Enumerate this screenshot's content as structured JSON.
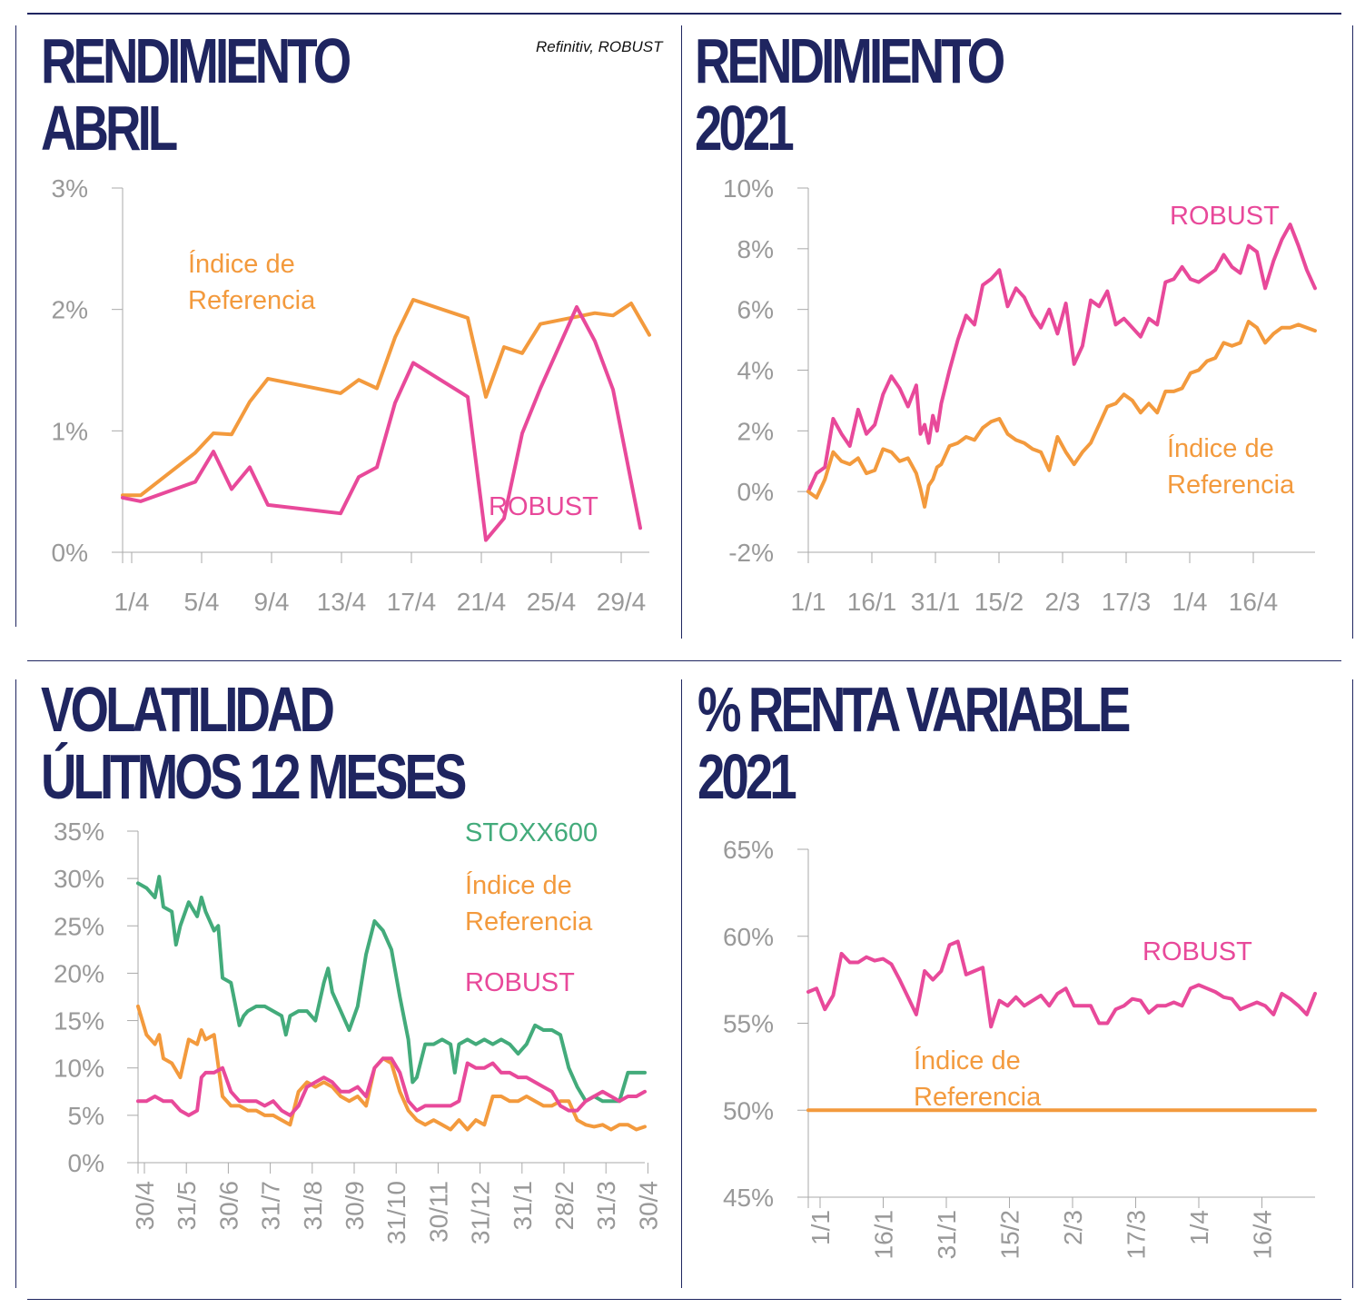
{
  "source": "Refinitiv, ROBUST",
  "colors": {
    "robust": "#e8499a",
    "index": "#f39a3d",
    "stoxx": "#43ab7b",
    "axis": "#aaaaaa",
    "title": "#1f2560",
    "tick": "#999999"
  },
  "panels": [
    {
      "title_line1": "RENDIMIENTO",
      "title_line2": "ABRIL"
    },
    {
      "title_line1": "RENDIMIENTO",
      "title_line2": "2021"
    },
    {
      "title_line1": "VOLATILIDAD",
      "title_line2": "ÚLITMOS 12 MESES"
    },
    {
      "title_line1": "% RENTA VARIABLE",
      "title_line2": "2021"
    }
  ],
  "chart_data": [
    {
      "type": "line",
      "x_ticks": [
        "1/4",
        "5/4",
        "9/4",
        "13/4",
        "17/4",
        "21/4",
        "25/4",
        "29/4"
      ],
      "y_ticks": [
        "0%",
        "1%",
        "2%",
        "3%"
      ],
      "ylim": [
        0,
        3
      ],
      "xlim": [
        1,
        30
      ],
      "series": [
        {
          "name": "Índice de Referencia",
          "label_line1": "Índice de",
          "label_line2": "Referencia",
          "color": "#f39a3d",
          "x": [
            1,
            2,
            5,
            6,
            7,
            8,
            9,
            13,
            14,
            15,
            16,
            17,
            20,
            21,
            22,
            23,
            24,
            27,
            28,
            29,
            30
          ],
          "y": [
            0.47,
            0.47,
            0.82,
            0.98,
            0.97,
            1.24,
            1.43,
            1.31,
            1.42,
            1.35,
            1.77,
            2.08,
            1.93,
            1.28,
            1.69,
            1.64,
            1.88,
            1.97,
            1.95,
            2.05,
            1.79
          ]
        },
        {
          "name": "ROBUST",
          "label_line1": "ROBUST",
          "color": "#e8499a",
          "x": [
            1,
            2,
            5,
            6,
            7,
            8,
            9,
            13,
            14,
            15,
            16,
            17,
            20,
            21,
            22,
            23,
            24,
            26,
            27,
            28,
            29.5
          ],
          "y": [
            0.45,
            0.42,
            0.58,
            0.83,
            0.52,
            0.7,
            0.39,
            0.32,
            0.62,
            0.7,
            1.23,
            1.56,
            1.28,
            0.1,
            0.28,
            0.98,
            1.35,
            2.02,
            1.74,
            1.34,
            0.2
          ]
        }
      ]
    },
    {
      "type": "line",
      "x_ticks": [
        "1/1",
        "16/1",
        "31/1",
        "15/2",
        "2/3",
        "17/3",
        "1/4",
        "16/4"
      ],
      "y_ticks": [
        "-2%",
        "0%",
        "2%",
        "4%",
        "6%",
        "8%",
        "10%"
      ],
      "ylim": [
        -2,
        10
      ],
      "series": [
        {
          "name": "ROBUST",
          "label_line1": "ROBUST",
          "color": "#e8499a",
          "x": [
            0,
            2,
            4,
            6,
            8,
            10,
            12,
            14,
            16,
            18,
            20,
            22,
            24,
            26,
            27,
            28,
            29,
            30,
            31,
            32,
            34,
            36,
            38,
            40,
            42,
            44,
            46,
            48,
            50,
            52,
            54,
            56,
            58,
            60,
            62,
            64,
            66,
            68,
            70,
            72,
            74,
            76,
            78,
            80,
            82,
            84,
            86,
            88,
            90,
            92,
            94,
            96,
            98,
            100,
            102,
            104,
            106,
            108,
            110,
            112,
            114,
            116,
            118,
            120,
            122
          ],
          "y": [
            0.0,
            0.6,
            0.8,
            2.4,
            1.9,
            1.5,
            2.7,
            1.9,
            2.2,
            3.2,
            3.8,
            3.4,
            2.8,
            3.5,
            1.9,
            2.2,
            1.6,
            2.5,
            2.0,
            2.9,
            4.0,
            5.0,
            5.8,
            5.5,
            6.8,
            7.0,
            7.3,
            6.1,
            6.7,
            6.4,
            5.8,
            5.4,
            6.0,
            5.2,
            6.2,
            4.2,
            4.8,
            6.3,
            6.1,
            6.6,
            5.5,
            5.7,
            5.4,
            5.1,
            5.7,
            5.5,
            6.9,
            7.0,
            7.4,
            7.0,
            6.9,
            7.1,
            7.3,
            7.8,
            7.4,
            7.2,
            8.1,
            7.9,
            6.7,
            7.6,
            8.3,
            8.8,
            8.1,
            7.3,
            6.7
          ]
        },
        {
          "name": "Índice de Referencia",
          "label_line1": "Índice de",
          "label_line2": "Referencia",
          "color": "#f39a3d",
          "x": [
            0,
            2,
            4,
            6,
            8,
            10,
            12,
            14,
            16,
            18,
            20,
            22,
            24,
            26,
            27,
            28,
            29,
            30,
            31,
            32,
            34,
            36,
            38,
            40,
            42,
            44,
            46,
            48,
            50,
            52,
            54,
            56,
            58,
            60,
            62,
            64,
            66,
            68,
            70,
            72,
            74,
            76,
            78,
            80,
            82,
            84,
            86,
            88,
            90,
            92,
            94,
            96,
            98,
            100,
            102,
            104,
            106,
            108,
            110,
            112,
            114,
            116,
            118,
            120,
            122
          ],
          "y": [
            0.0,
            -0.2,
            0.4,
            1.3,
            1.0,
            0.9,
            1.1,
            0.6,
            0.7,
            1.4,
            1.3,
            1.0,
            1.1,
            0.6,
            0.1,
            -0.5,
            0.2,
            0.4,
            0.8,
            0.9,
            1.5,
            1.6,
            1.8,
            1.7,
            2.1,
            2.3,
            2.4,
            1.9,
            1.7,
            1.6,
            1.4,
            1.3,
            0.7,
            1.8,
            1.3,
            0.9,
            1.3,
            1.6,
            2.2,
            2.8,
            2.9,
            3.2,
            3.0,
            2.6,
            2.9,
            2.6,
            3.3,
            3.3,
            3.4,
            3.9,
            4.0,
            4.3,
            4.4,
            4.9,
            4.8,
            4.9,
            5.6,
            5.4,
            4.9,
            5.2,
            5.4,
            5.4,
            5.5,
            5.4,
            5.3
          ]
        }
      ]
    },
    {
      "type": "line",
      "x_ticks": [
        "30/4",
        "31/5",
        "30/6",
        "31/7",
        "31/8",
        "30/9",
        "31/10",
        "30/11",
        "31/12",
        "31/1",
        "28/2",
        "31/3",
        "30/4"
      ],
      "y_ticks": [
        "0%",
        "5%",
        "10%",
        "15%",
        "20%",
        "25%",
        "30%",
        "35%"
      ],
      "ylim": [
        0,
        35
      ],
      "series": [
        {
          "name": "STOXX600",
          "label_line1": "STOXX600",
          "color": "#43ab7b",
          "x": [
            0,
            0.2,
            0.4,
            0.5,
            0.6,
            0.8,
            0.9,
            1.0,
            1.2,
            1.4,
            1.5,
            1.6,
            1.8,
            1.9,
            2.0,
            2.2,
            2.4,
            2.5,
            2.6,
            2.8,
            3.0,
            3.2,
            3.4,
            3.5,
            3.6,
            3.8,
            4.0,
            4.2,
            4.4,
            4.5,
            4.6,
            4.8,
            5.0,
            5.2,
            5.4,
            5.6,
            5.8,
            6.0,
            6.2,
            6.4,
            6.5,
            6.6,
            6.8,
            7.0,
            7.2,
            7.4,
            7.5,
            7.6,
            7.8,
            8.0,
            8.2,
            8.4,
            8.6,
            8.8,
            9.0,
            9.2,
            9.4,
            9.6,
            9.8,
            10.0,
            10.2,
            10.4,
            10.6,
            10.8,
            11.0,
            11.2,
            11.4,
            11.6,
            11.8,
            12.0
          ],
          "y": [
            29.5,
            29.0,
            28.0,
            30.2,
            27.0,
            26.5,
            23.0,
            25.0,
            27.5,
            26.0,
            28.0,
            26.5,
            24.5,
            25.0,
            19.5,
            19.0,
            14.5,
            15.5,
            16.0,
            16.5,
            16.5,
            16.0,
            15.5,
            13.5,
            15.5,
            16.0,
            16.0,
            15.0,
            19.0,
            20.5,
            18.0,
            16.0,
            14.0,
            16.5,
            22.0,
            25.5,
            24.5,
            22.5,
            17.5,
            13.0,
            8.5,
            9.0,
            12.5,
            12.5,
            13.0,
            12.5,
            9.5,
            12.5,
            13.0,
            12.5,
            13.0,
            12.5,
            13.0,
            12.5,
            11.5,
            12.5,
            14.5,
            14.0,
            14.0,
            13.5,
            10.0,
            8.0,
            6.5,
            7.0,
            6.5,
            6.5,
            6.5,
            9.5,
            9.5,
            9.5
          ]
        },
        {
          "name": "Índice de Referencia",
          "label_line1": "Índice de",
          "label_line2": "Referencia",
          "color": "#f39a3d",
          "x": [
            0,
            0.2,
            0.4,
            0.5,
            0.6,
            0.8,
            1.0,
            1.2,
            1.4,
            1.5,
            1.6,
            1.8,
            2.0,
            2.2,
            2.4,
            2.6,
            2.8,
            3.0,
            3.2,
            3.4,
            3.6,
            3.8,
            4.0,
            4.2,
            4.4,
            4.6,
            4.8,
            5.0,
            5.2,
            5.4,
            5.6,
            5.8,
            6.0,
            6.2,
            6.4,
            6.6,
            6.8,
            7.0,
            7.2,
            7.4,
            7.6,
            7.8,
            8.0,
            8.2,
            8.4,
            8.6,
            8.8,
            9.0,
            9.2,
            9.4,
            9.6,
            9.8,
            10.0,
            10.2,
            10.4,
            10.6,
            10.8,
            11.0,
            11.2,
            11.4,
            11.6,
            11.8,
            12.0
          ],
          "y": [
            16.5,
            13.5,
            12.5,
            13.5,
            11.0,
            10.5,
            9.0,
            13.0,
            12.5,
            14.0,
            13.0,
            13.5,
            7.0,
            6.0,
            6.0,
            5.5,
            5.5,
            5.0,
            5.0,
            4.5,
            4.0,
            7.5,
            8.5,
            8.0,
            8.5,
            8.0,
            7.0,
            6.5,
            7.0,
            6.0,
            10.0,
            11.0,
            10.5,
            7.5,
            5.5,
            4.5,
            4.0,
            4.5,
            4.0,
            3.5,
            4.5,
            3.5,
            4.5,
            4.0,
            7.0,
            7.0,
            6.5,
            6.5,
            7.0,
            6.5,
            6.0,
            6.0,
            6.5,
            6.5,
            4.5,
            4.0,
            3.8,
            4.0,
            3.5,
            4.0,
            4.0,
            3.5,
            3.8
          ]
        },
        {
          "name": "ROBUST",
          "label_line1": "ROBUST",
          "color": "#e8499a",
          "x": [
            0,
            0.2,
            0.4,
            0.6,
            0.8,
            1.0,
            1.2,
            1.4,
            1.5,
            1.6,
            1.8,
            2.0,
            2.2,
            2.4,
            2.6,
            2.8,
            3.0,
            3.2,
            3.4,
            3.6,
            3.8,
            4.0,
            4.2,
            4.4,
            4.6,
            4.8,
            5.0,
            5.2,
            5.4,
            5.6,
            5.8,
            6.0,
            6.2,
            6.4,
            6.6,
            6.8,
            7.0,
            7.2,
            7.4,
            7.6,
            7.8,
            8.0,
            8.2,
            8.4,
            8.6,
            8.8,
            9.0,
            9.2,
            9.4,
            9.6,
            9.8,
            10.0,
            10.2,
            10.4,
            10.6,
            10.8,
            11.0,
            11.2,
            11.4,
            11.6,
            11.8,
            12.0
          ],
          "y": [
            6.5,
            6.5,
            7.0,
            6.5,
            6.5,
            5.5,
            5.0,
            5.5,
            9.0,
            9.5,
            9.5,
            10.0,
            7.5,
            6.5,
            6.5,
            6.5,
            6.0,
            6.5,
            5.5,
            5.0,
            6.0,
            8.0,
            8.5,
            9.0,
            8.5,
            7.5,
            7.5,
            8.0,
            7.0,
            10.0,
            11.0,
            11.0,
            9.5,
            6.5,
            5.5,
            6.0,
            6.0,
            6.0,
            6.0,
            6.5,
            10.5,
            10.0,
            10.0,
            10.5,
            9.5,
            9.5,
            9.0,
            9.0,
            8.5,
            8.0,
            7.5,
            6.0,
            5.5,
            5.5,
            6.5,
            7.0,
            7.5,
            7.0,
            6.5,
            7.0,
            7.0,
            7.5
          ]
        }
      ]
    },
    {
      "type": "line",
      "x_ticks": [
        "1/1",
        "16/1",
        "31/1",
        "15/2",
        "2/3",
        "17/3",
        "1/4",
        "16/4"
      ],
      "y_ticks": [
        "45%",
        "50%",
        "55%",
        "60%",
        "65%"
      ],
      "ylim": [
        45,
        65
      ],
      "series": [
        {
          "name": "ROBUST",
          "label_line1": "ROBUST",
          "color": "#e8499a",
          "x": [
            0,
            2,
            4,
            6,
            8,
            10,
            12,
            14,
            16,
            18,
            20,
            22,
            24,
            26,
            28,
            30,
            32,
            34,
            36,
            38,
            40,
            42,
            44,
            46,
            48,
            50,
            52,
            54,
            56,
            58,
            60,
            62,
            64,
            66,
            68,
            70,
            72,
            74,
            76,
            78,
            80,
            82,
            84,
            86,
            88,
            90,
            92,
            94,
            96,
            98,
            100,
            102,
            104,
            106,
            108,
            110,
            112,
            114,
            116,
            118,
            120,
            122
          ],
          "y": [
            56.8,
            57.0,
            55.8,
            56.6,
            59.0,
            58.5,
            58.5,
            58.8,
            58.6,
            58.7,
            58.4,
            57.5,
            56.5,
            55.5,
            58.0,
            57.5,
            58.0,
            59.5,
            59.7,
            57.8,
            58.0,
            58.2,
            54.8,
            56.3,
            56.0,
            56.5,
            56.0,
            56.3,
            56.6,
            56.0,
            56.7,
            57.0,
            56.0,
            56.0,
            56.0,
            55.0,
            55.0,
            55.8,
            56.0,
            56.4,
            56.3,
            55.6,
            56.0,
            56.0,
            56.2,
            56.0,
            57.0,
            57.2,
            57.0,
            56.8,
            56.5,
            56.4,
            55.8,
            56.0,
            56.2,
            56.0,
            55.5,
            56.7,
            56.4,
            56.0,
            55.5,
            56.7
          ]
        },
        {
          "name": "Índice de Referencia",
          "label_line1": "Índice de",
          "label_line2": "Referencia",
          "color": "#f39a3d",
          "x": [
            0,
            122
          ],
          "y": [
            50,
            50
          ]
        }
      ]
    }
  ]
}
